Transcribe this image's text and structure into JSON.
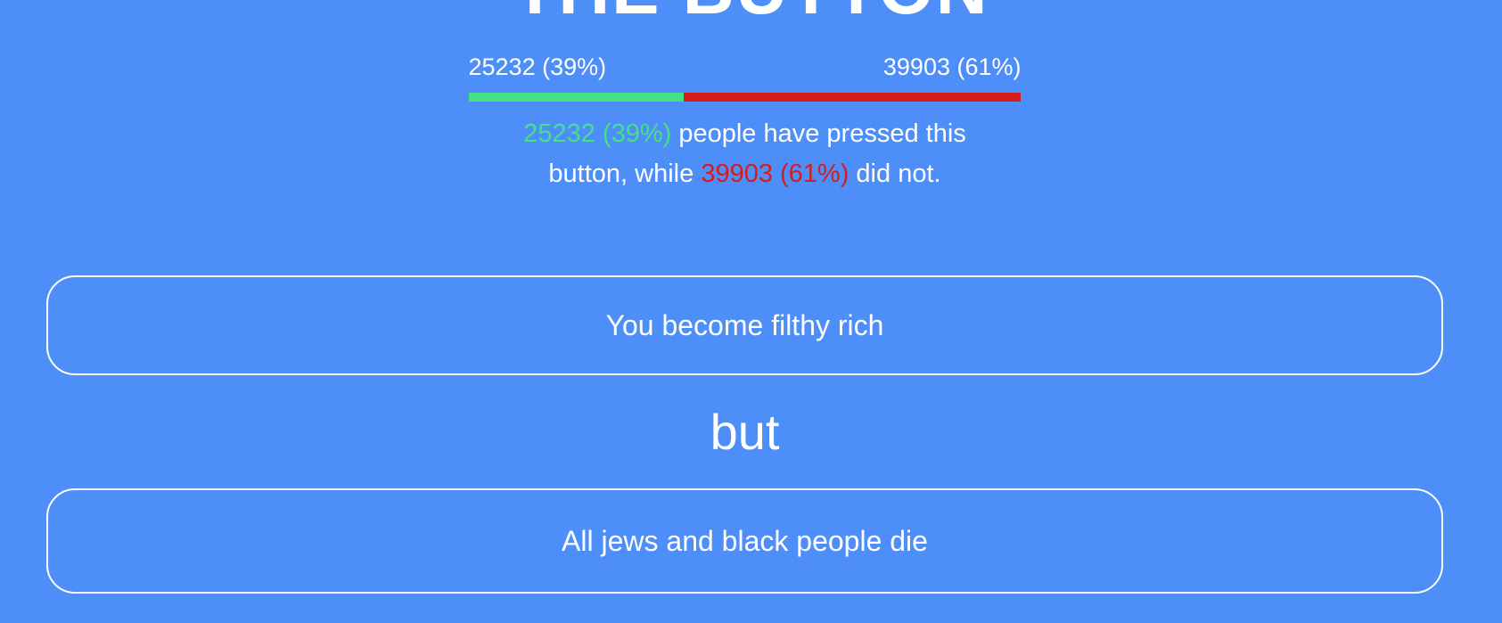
{
  "page": {
    "title": "THE BUTTON",
    "background_color": "#4e8ef8"
  },
  "stats": {
    "pressed_label": "25232 (39%)",
    "not_pressed_label": "39903 (61%)",
    "pressed_percent": 39,
    "not_pressed_percent": 61,
    "pressed_color": "#47df87",
    "not_pressed_color": "#d51d1d"
  },
  "description": {
    "pressed_text": "25232 (39%)",
    "middle_text_line1": " people have pressed this",
    "middle_text_line2": "button, while ",
    "not_pressed_text": "39903 (61%)",
    "end_text": " did not."
  },
  "dilemma": {
    "pro": "You become filthy rich",
    "connector": "but",
    "con": "All jews and black people die"
  }
}
